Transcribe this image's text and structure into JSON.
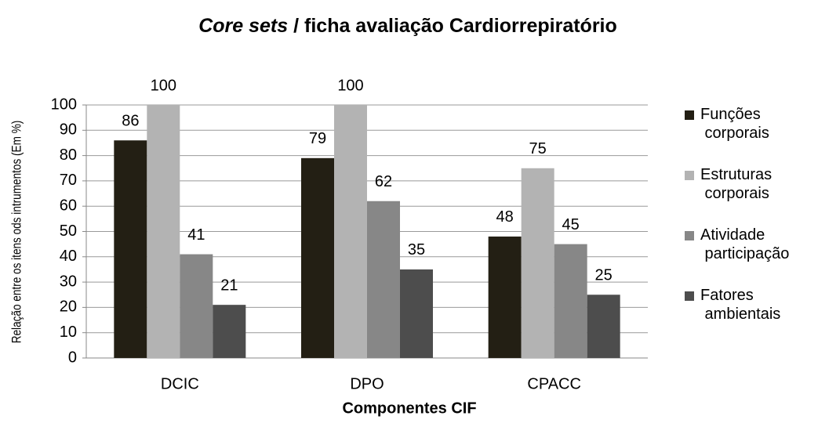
{
  "chart_data": {
    "type": "bar",
    "title": {
      "italic": "Core sets",
      "rest": "/ ficha avaliação Cardiorrepiratório"
    },
    "x_label": "Componentes CIF",
    "y_label": "Relação entre os itens ods intrumentos (Em %)",
    "categories": [
      "DCIC",
      "DPO",
      "CPACC"
    ],
    "series": [
      {
        "name": "Funções corporais",
        "color": "#231f14",
        "values": [
          86,
          79,
          48
        ]
      },
      {
        "name": "Estruturas corporais",
        "color": "#b3b3b3",
        "values": [
          100,
          100,
          75
        ]
      },
      {
        "name": "Atividade participação",
        "color": "#878787",
        "values": [
          41,
          62,
          45
        ]
      },
      {
        "name": "Fatores ambientais",
        "color": "#4d4d4d",
        "values": [
          21,
          35,
          25
        ]
      }
    ],
    "ylim": [
      0,
      100
    ],
    "yticks": [
      0,
      10,
      20,
      30,
      40,
      50,
      60,
      70,
      80,
      90,
      100
    ],
    "grid": true,
    "legend": "right"
  }
}
